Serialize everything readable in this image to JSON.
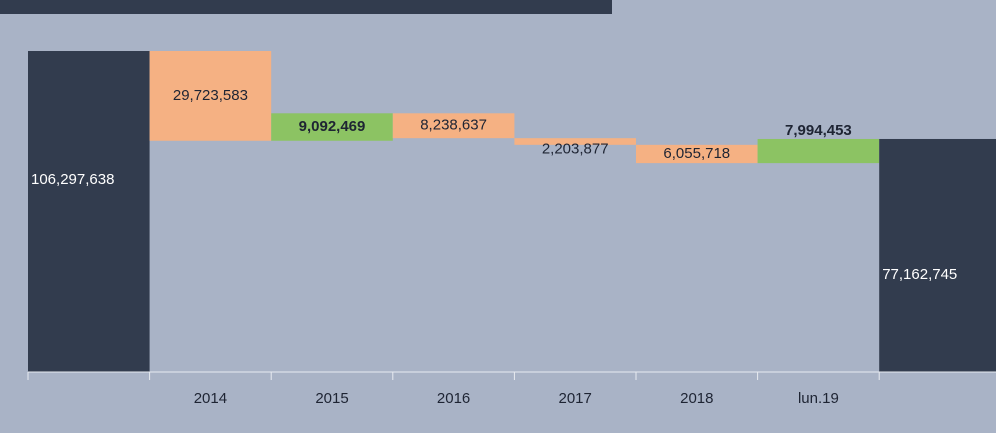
{
  "chart_data": {
    "type": "waterfall",
    "categories": [
      null,
      "2014",
      "2015",
      "2016",
      "2017",
      "2018",
      "lun.19",
      null
    ],
    "values": [
      106297638,
      -29723583,
      9092469,
      -8238637,
      -2203877,
      -6055718,
      7994453,
      77162745
    ],
    "value_labels": [
      "106,297,638",
      "29,723,583",
      "9,092,469",
      "8,238,637",
      "2,203,877",
      "6,055,718",
      "7,994,453",
      "77,162,745"
    ],
    "colors": {
      "total": "#323c4e",
      "increase": "#8cc363",
      "decrease": "#f5b183"
    }
  }
}
